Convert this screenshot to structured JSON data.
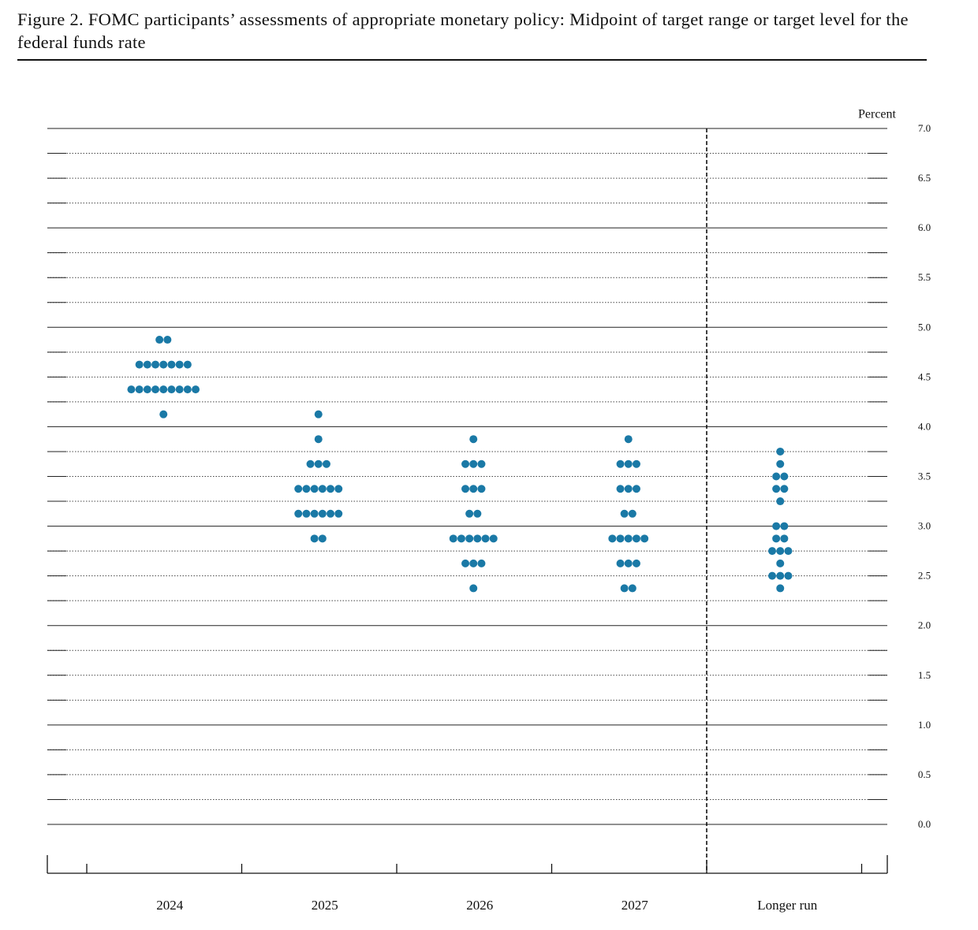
{
  "chart_data": {
    "type": "dot",
    "title": "Figure 2.  FOMC participants’ assessments of appropriate monetary policy: Midpoint of target range or target level for the federal funds rate",
    "y_label": "Percent",
    "categories": [
      "2024",
      "2025",
      "2026",
      "2027",
      "Longer run"
    ],
    "color": "#1a79a6",
    "values": [
      [
        4.875,
        4.875,
        4.625,
        4.625,
        4.625,
        4.625,
        4.625,
        4.625,
        4.625,
        4.375,
        4.375,
        4.375,
        4.375,
        4.375,
        4.375,
        4.375,
        4.375,
        4.375,
        4.125
      ],
      [
        4.125,
        3.875,
        3.625,
        3.625,
        3.625,
        3.375,
        3.375,
        3.375,
        3.375,
        3.375,
        3.375,
        3.125,
        3.125,
        3.125,
        3.125,
        3.125,
        3.125,
        2.875,
        2.875
      ],
      [
        3.875,
        3.625,
        3.625,
        3.625,
        3.375,
        3.375,
        3.375,
        3.125,
        3.125,
        2.875,
        2.875,
        2.875,
        2.875,
        2.875,
        2.875,
        2.625,
        2.625,
        2.625,
        2.375
      ],
      [
        3.875,
        3.625,
        3.625,
        3.625,
        3.375,
        3.375,
        3.375,
        3.125,
        3.125,
        2.875,
        2.875,
        2.875,
        2.875,
        2.875,
        2.625,
        2.625,
        2.625,
        2.375,
        2.375
      ],
      [
        3.75,
        3.625,
        3.5,
        3.5,
        3.375,
        3.375,
        3.25,
        3.0,
        3.0,
        2.875,
        2.875,
        2.75,
        2.75,
        2.75,
        2.625,
        2.5,
        2.5,
        2.5,
        2.375
      ]
    ],
    "ylim": [
      0,
      7
    ],
    "yticks": [
      {
        "value": 0,
        "label": "0.0"
      },
      {
        "value": 0.5,
        "label": "0.5"
      },
      {
        "value": 1,
        "label": "1.0"
      },
      {
        "value": 1.5,
        "label": "1.5"
      },
      {
        "value": 2,
        "label": "2.0"
      },
      {
        "value": 2.5,
        "label": "2.5"
      },
      {
        "value": 3,
        "label": "3.0"
      },
      {
        "value": 3.5,
        "label": "3.5"
      },
      {
        "value": 4,
        "label": "4.0"
      },
      {
        "value": 4.5,
        "label": "4.5"
      },
      {
        "value": 5,
        "label": "5.0"
      },
      {
        "value": 5.5,
        "label": "5.5"
      },
      {
        "value": 6,
        "label": "6.0"
      },
      {
        "value": 6.5,
        "label": "6.5"
      },
      {
        "value": 7,
        "label": "7.0"
      }
    ],
    "yminor": [
      0.25,
      0.75,
      1.25,
      1.75,
      2.25,
      2.75,
      3.25,
      3.75,
      4.25,
      4.75,
      5.25,
      5.75,
      6.25,
      6.75
    ],
    "grid": true
  }
}
